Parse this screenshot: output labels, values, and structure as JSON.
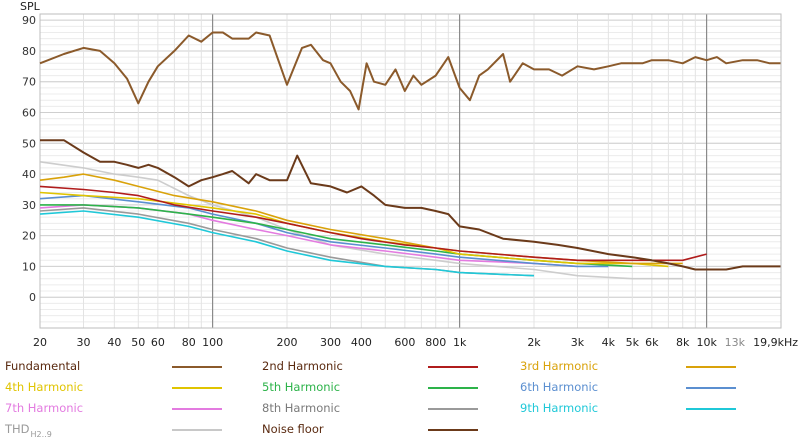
{
  "chart_data": {
    "type": "line",
    "ylabel": "SPL",
    "xscale": "log",
    "xlim": [
      20,
      20000
    ],
    "ylim": [
      -10,
      92
    ],
    "yticks": [
      0,
      10,
      20,
      30,
      40,
      50,
      60,
      70,
      80,
      90
    ],
    "xticks": [
      {
        "v": 20,
        "label": "20"
      },
      {
        "v": 30,
        "label": "30"
      },
      {
        "v": 40,
        "label": "40"
      },
      {
        "v": 50,
        "label": "50"
      },
      {
        "v": 60,
        "label": "60"
      },
      {
        "v": 80,
        "label": "80"
      },
      {
        "v": 100,
        "label": "100"
      },
      {
        "v": 200,
        "label": "200"
      },
      {
        "v": 300,
        "label": "300"
      },
      {
        "v": 400,
        "label": "400"
      },
      {
        "v": 600,
        "label": "600"
      },
      {
        "v": 800,
        "label": "800"
      },
      {
        "v": 1000,
        "label": "1k"
      },
      {
        "v": 2000,
        "label": "2k"
      },
      {
        "v": 3000,
        "label": "3k"
      },
      {
        "v": 4000,
        "label": "4k"
      },
      {
        "v": 5000,
        "label": "5k"
      },
      {
        "v": 6000,
        "label": "6k"
      },
      {
        "v": 8000,
        "label": "8k"
      },
      {
        "v": 10000,
        "label": "10k"
      },
      {
        "v": 13000,
        "label": "13k"
      },
      {
        "v": 19900,
        "label": "19,9kHz"
      }
    ],
    "grid": true,
    "legend_position": "bottom",
    "series": [
      {
        "name": "Fundamental",
        "color": "#8B5A2B",
        "values": [
          [
            20,
            76
          ],
          [
            25,
            79
          ],
          [
            30,
            81
          ],
          [
            35,
            80
          ],
          [
            40,
            76
          ],
          [
            45,
            71
          ],
          [
            50,
            63
          ],
          [
            55,
            70
          ],
          [
            60,
            75
          ],
          [
            70,
            80
          ],
          [
            80,
            85
          ],
          [
            90,
            83
          ],
          [
            100,
            86
          ],
          [
            110,
            86
          ],
          [
            120,
            84
          ],
          [
            140,
            84
          ],
          [
            150,
            86
          ],
          [
            170,
            85
          ],
          [
            200,
            69
          ],
          [
            230,
            81
          ],
          [
            250,
            82
          ],
          [
            280,
            77
          ],
          [
            300,
            76
          ],
          [
            330,
            70
          ],
          [
            360,
            67
          ],
          [
            390,
            61
          ],
          [
            420,
            76
          ],
          [
            450,
            70
          ],
          [
            500,
            69
          ],
          [
            550,
            74
          ],
          [
            600,
            67
          ],
          [
            650,
            72
          ],
          [
            700,
            69
          ],
          [
            800,
            72
          ],
          [
            900,
            78
          ],
          [
            1000,
            68
          ],
          [
            1100,
            64
          ],
          [
            1200,
            72
          ],
          [
            1300,
            74
          ],
          [
            1500,
            79
          ],
          [
            1600,
            70
          ],
          [
            1800,
            76
          ],
          [
            2000,
            74
          ],
          [
            2300,
            74
          ],
          [
            2600,
            72
          ],
          [
            3000,
            75
          ],
          [
            3500,
            74
          ],
          [
            4000,
            75
          ],
          [
            4500,
            76
          ],
          [
            5000,
            76
          ],
          [
            5500,
            76
          ],
          [
            6000,
            77
          ],
          [
            7000,
            77
          ],
          [
            8000,
            76
          ],
          [
            9000,
            78
          ],
          [
            10000,
            77
          ],
          [
            11000,
            78
          ],
          [
            12000,
            76
          ],
          [
            14000,
            77
          ],
          [
            16000,
            77
          ],
          [
            18000,
            76
          ],
          [
            19900,
            76
          ]
        ]
      },
      {
        "name": "2nd Harmonic",
        "color": "#B01C1C",
        "values": [
          [
            20,
            36
          ],
          [
            30,
            35
          ],
          [
            40,
            34
          ],
          [
            50,
            33
          ],
          [
            70,
            30
          ],
          [
            100,
            28
          ],
          [
            150,
            26
          ],
          [
            200,
            24
          ],
          [
            300,
            21
          ],
          [
            400,
            19
          ],
          [
            600,
            17
          ],
          [
            800,
            16
          ],
          [
            1000,
            15
          ],
          [
            2000,
            13
          ],
          [
            3000,
            12
          ],
          [
            5000,
            12
          ],
          [
            8000,
            12
          ],
          [
            10000,
            14
          ]
        ]
      },
      {
        "name": "3rd Harmonic",
        "color": "#D9A20A",
        "values": [
          [
            20,
            38
          ],
          [
            25,
            39
          ],
          [
            30,
            40
          ],
          [
            40,
            38
          ],
          [
            50,
            36
          ],
          [
            70,
            33
          ],
          [
            100,
            31
          ],
          [
            150,
            28
          ],
          [
            200,
            25
          ],
          [
            300,
            22
          ],
          [
            500,
            19
          ],
          [
            800,
            16
          ],
          [
            1000,
            15
          ],
          [
            2000,
            13
          ],
          [
            3000,
            12
          ],
          [
            5000,
            11
          ],
          [
            8000,
            11
          ]
        ]
      },
      {
        "name": "4th Harmonic",
        "color": "#E0C400",
        "values": [
          [
            20,
            34
          ],
          [
            30,
            33
          ],
          [
            50,
            32
          ],
          [
            80,
            30
          ],
          [
            100,
            29
          ],
          [
            150,
            27
          ],
          [
            200,
            24
          ],
          [
            300,
            21
          ],
          [
            500,
            18
          ],
          [
            800,
            16
          ],
          [
            1000,
            14
          ],
          [
            2000,
            12
          ],
          [
            3000,
            11
          ],
          [
            5000,
            11
          ],
          [
            7000,
            10
          ]
        ]
      },
      {
        "name": "5th Harmonic",
        "color": "#2DB34A",
        "values": [
          [
            20,
            30
          ],
          [
            30,
            30
          ],
          [
            50,
            29
          ],
          [
            80,
            27
          ],
          [
            100,
            26
          ],
          [
            150,
            24
          ],
          [
            200,
            22
          ],
          [
            300,
            19
          ],
          [
            500,
            17
          ],
          [
            800,
            15
          ],
          [
            1000,
            14
          ],
          [
            2000,
            12
          ],
          [
            3000,
            11
          ],
          [
            5000,
            10
          ]
        ]
      },
      {
        "name": "6th Harmonic",
        "color": "#5B8FD0",
        "values": [
          [
            20,
            32
          ],
          [
            30,
            33
          ],
          [
            50,
            31
          ],
          [
            80,
            29
          ],
          [
            100,
            27
          ],
          [
            150,
            24
          ],
          [
            200,
            21
          ],
          [
            300,
            18
          ],
          [
            500,
            16
          ],
          [
            800,
            14
          ],
          [
            1000,
            13
          ],
          [
            2000,
            11
          ],
          [
            3000,
            10
          ],
          [
            4000,
            10
          ]
        ]
      },
      {
        "name": "7th Harmonic",
        "color": "#E37BE0",
        "values": [
          [
            20,
            29
          ],
          [
            30,
            30
          ],
          [
            50,
            29
          ],
          [
            80,
            27
          ],
          [
            100,
            25
          ],
          [
            150,
            22
          ],
          [
            200,
            20
          ],
          [
            300,
            17
          ],
          [
            500,
            15
          ],
          [
            800,
            13
          ],
          [
            1000,
            12
          ],
          [
            2000,
            11
          ],
          [
            3000,
            10
          ]
        ]
      },
      {
        "name": "8th Harmonic",
        "color": "#9A9A9A",
        "values": [
          [
            20,
            28
          ],
          [
            30,
            29
          ],
          [
            50,
            27
          ],
          [
            80,
            24
          ],
          [
            100,
            22
          ],
          [
            150,
            19
          ],
          [
            200,
            16
          ],
          [
            300,
            13
          ],
          [
            500,
            10
          ],
          [
            800,
            9
          ],
          [
            1000,
            8
          ],
          [
            2000,
            7
          ]
        ]
      },
      {
        "name": "9th Harmonic",
        "color": "#1FC8D8",
        "values": [
          [
            20,
            27
          ],
          [
            30,
            28
          ],
          [
            50,
            26
          ],
          [
            80,
            23
          ],
          [
            100,
            21
          ],
          [
            150,
            18
          ],
          [
            200,
            15
          ],
          [
            300,
            12
          ],
          [
            500,
            10
          ],
          [
            800,
            9
          ],
          [
            1000,
            8
          ],
          [
            2000,
            7
          ]
        ]
      },
      {
        "name": "THD",
        "name_sub": "H2..9",
        "color": "#C8C8C8",
        "values": [
          [
            20,
            44
          ],
          [
            30,
            42
          ],
          [
            40,
            40
          ],
          [
            50,
            39
          ],
          [
            60,
            38
          ],
          [
            80,
            33
          ],
          [
            100,
            30
          ],
          [
            150,
            26
          ],
          [
            200,
            22
          ],
          [
            300,
            17
          ],
          [
            500,
            14
          ],
          [
            800,
            12
          ],
          [
            1000,
            11
          ],
          [
            2000,
            9
          ],
          [
            3000,
            7
          ],
          [
            5000,
            6
          ],
          [
            8000,
            6
          ]
        ]
      },
      {
        "name": "Noise floor",
        "color": "#6B3A1A",
        "values": [
          [
            20,
            51
          ],
          [
            25,
            51
          ],
          [
            30,
            47
          ],
          [
            35,
            44
          ],
          [
            40,
            44
          ],
          [
            45,
            43
          ],
          [
            50,
            42
          ],
          [
            55,
            43
          ],
          [
            60,
            42
          ],
          [
            70,
            39
          ],
          [
            80,
            36
          ],
          [
            90,
            38
          ],
          [
            100,
            39
          ],
          [
            110,
            40
          ],
          [
            120,
            41
          ],
          [
            140,
            37
          ],
          [
            150,
            40
          ],
          [
            170,
            38
          ],
          [
            200,
            38
          ],
          [
            220,
            46
          ],
          [
            250,
            37
          ],
          [
            300,
            36
          ],
          [
            350,
            34
          ],
          [
            400,
            36
          ],
          [
            450,
            33
          ],
          [
            500,
            30
          ],
          [
            600,
            29
          ],
          [
            700,
            29
          ],
          [
            800,
            28
          ],
          [
            900,
            27
          ],
          [
            1000,
            23
          ],
          [
            1200,
            22
          ],
          [
            1500,
            19
          ],
          [
            2000,
            18
          ],
          [
            2500,
            17
          ],
          [
            3000,
            16
          ],
          [
            4000,
            14
          ],
          [
            5000,
            13
          ],
          [
            6000,
            12
          ],
          [
            7000,
            11
          ],
          [
            8000,
            10
          ],
          [
            9000,
            9
          ],
          [
            10000,
            9
          ],
          [
            12000,
            9
          ],
          [
            14000,
            10
          ],
          [
            16000,
            10
          ],
          [
            19900,
            10
          ]
        ]
      }
    ]
  }
}
